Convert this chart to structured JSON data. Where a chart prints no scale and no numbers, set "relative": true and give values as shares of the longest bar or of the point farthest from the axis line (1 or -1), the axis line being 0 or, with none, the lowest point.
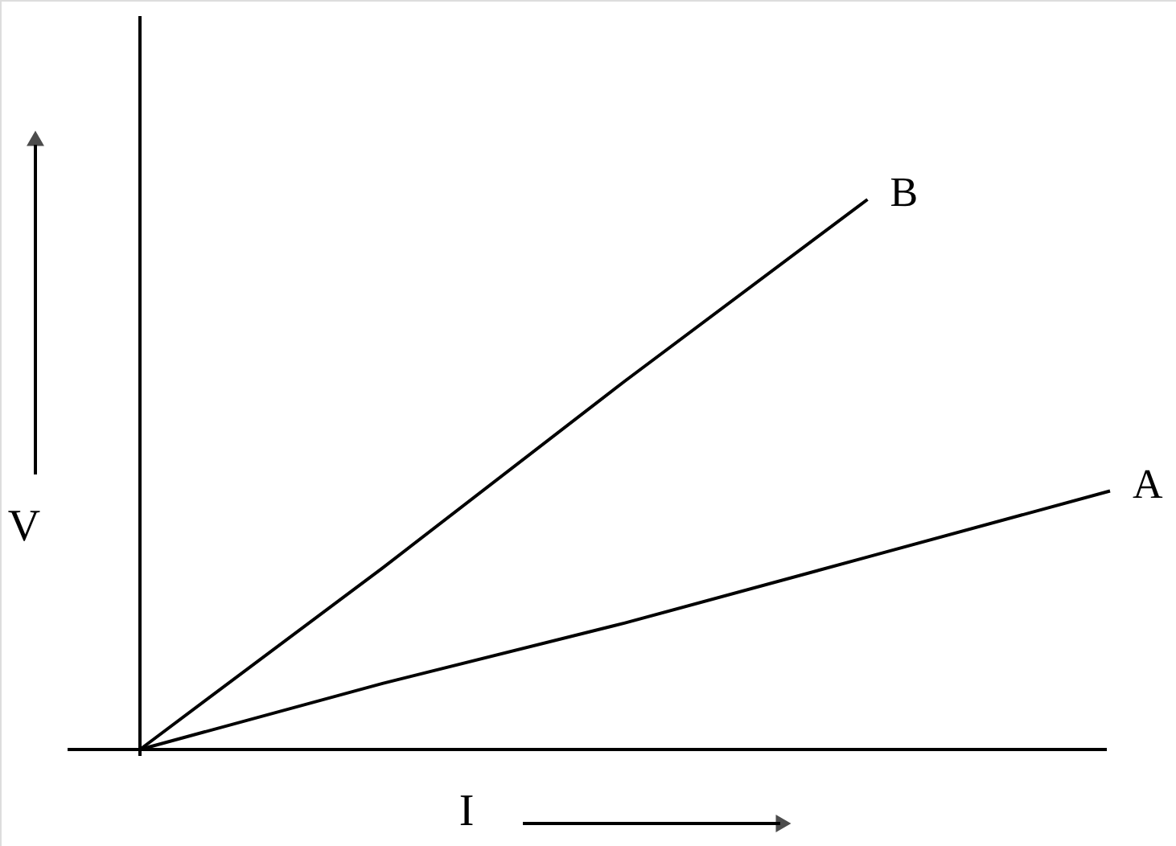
{
  "chart_data": {
    "type": "line",
    "relative": true,
    "xlabel": "I",
    "ylabel": "V",
    "categories": [
      null,
      null,
      null,
      null,
      null
    ],
    "series": [
      {
        "name": "B",
        "color": "#000000",
        "values": [
          0,
          0.33,
          0.67,
          1,
          null
        ]
      },
      {
        "name": "A",
        "color": "#000000",
        "values": [
          0,
          0.12,
          0.23,
          0.35,
          0.47
        ]
      }
    ]
  }
}
